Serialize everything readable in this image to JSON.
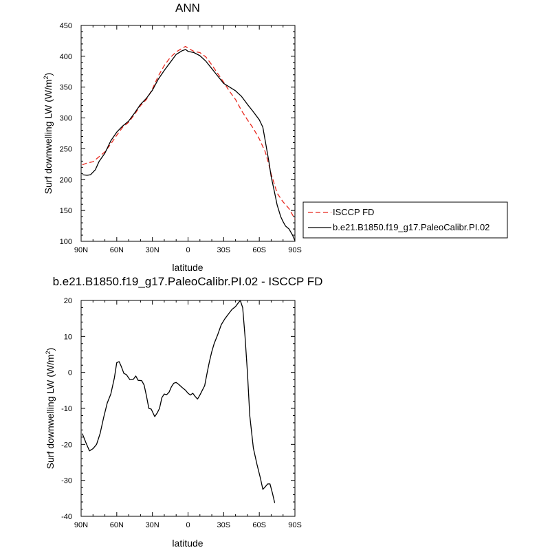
{
  "chart_data": [
    {
      "type": "line",
      "title": "ANN",
      "xlabel": "latitude",
      "ylabel_main": "Surf downwelling LW (W/m",
      "ylabel_sup": "2",
      "ylabel_close": ")",
      "xlim": [
        90,
        -90
      ],
      "ylim": [
        100,
        450
      ],
      "xticks": [
        90,
        60,
        30,
        0,
        -30,
        -60,
        -90
      ],
      "xtick_labels": [
        "90N",
        "60N",
        "30N",
        "0",
        "30S",
        "60S",
        "90S"
      ],
      "yticks": [
        100,
        150,
        200,
        250,
        300,
        350,
        400,
        450
      ],
      "ytick_labels": [
        "100",
        "150",
        "200",
        "250",
        "300",
        "350",
        "400",
        "450"
      ],
      "legend_position": "outside-right",
      "series": [
        {
          "name": "ISCCP FD",
          "color": "#e8261c",
          "dash": "dashed",
          "points": [
            [
              89,
              224
            ],
            [
              85,
              227
            ],
            [
              80,
              229
            ],
            [
              75,
              237
            ],
            [
              70,
              245
            ],
            [
              65,
              258
            ],
            [
              60,
              272
            ],
            [
              55,
              285
            ],
            [
              50,
              293
            ],
            [
              45,
              306
            ],
            [
              40,
              320
            ],
            [
              35,
              330
            ],
            [
              30,
              347
            ],
            [
              25,
              368
            ],
            [
              20,
              385
            ],
            [
              15,
              398
            ],
            [
              10,
              407
            ],
            [
              5,
              413
            ],
            [
              2,
              416
            ],
            [
              0,
              413
            ],
            [
              -5,
              408
            ],
            [
              -10,
              406
            ],
            [
              -15,
              399
            ],
            [
              -20,
              386
            ],
            [
              -25,
              372
            ],
            [
              -30,
              358
            ],
            [
              -35,
              343
            ],
            [
              -40,
              330
            ],
            [
              -45,
              312
            ],
            [
              -50,
              297
            ],
            [
              -55,
              283
            ],
            [
              -60,
              266
            ],
            [
              -65,
              245
            ],
            [
              -68,
              225
            ],
            [
              -70,
              209
            ],
            [
              -72,
              197
            ],
            [
              -75,
              178
            ],
            [
              -80,
              164
            ],
            [
              -85,
              153
            ],
            [
              -90,
              136
            ]
          ]
        },
        {
          "name": "b.e21.B1850.f19_g17.PaleoCalibr.PI.02",
          "color": "#000000",
          "dash": "solid",
          "points": [
            [
              89,
              208
            ],
            [
              85,
              207
            ],
            [
              82,
              208
            ],
            [
              78,
              216
            ],
            [
              75,
              229
            ],
            [
              70,
              243
            ],
            [
              65,
              263
            ],
            [
              60,
              277
            ],
            [
              55,
              287
            ],
            [
              50,
              295
            ],
            [
              45,
              308
            ],
            [
              40,
              322
            ],
            [
              35,
              332
            ],
            [
              30,
              345
            ],
            [
              25,
              363
            ],
            [
              20,
              377
            ],
            [
              15,
              390
            ],
            [
              10,
              403
            ],
            [
              5,
              409
            ],
            [
              2,
              411
            ],
            [
              0,
              408
            ],
            [
              -5,
              406
            ],
            [
              -10,
              401
            ],
            [
              -15,
              392
            ],
            [
              -20,
              380
            ],
            [
              -25,
              368
            ],
            [
              -30,
              356
            ],
            [
              -35,
              350
            ],
            [
              -40,
              344
            ],
            [
              -45,
              335
            ],
            [
              -50,
              322
            ],
            [
              -55,
              310
            ],
            [
              -60,
              297
            ],
            [
              -63,
              285
            ],
            [
              -65,
              263
            ],
            [
              -68,
              230
            ],
            [
              -70,
              205
            ],
            [
              -73,
              178
            ],
            [
              -75,
              159
            ],
            [
              -78,
              140
            ],
            [
              -80,
              132
            ],
            [
              -82,
              125
            ],
            [
              -85,
              120
            ],
            [
              -88,
              110
            ],
            [
              -90,
              101
            ]
          ]
        }
      ]
    },
    {
      "type": "line",
      "title": "b.e21.B1850.f19_g17.PaleoCalibr.PI.02 - ISCCP FD",
      "xlabel": "latitude",
      "ylabel_main": "Surf downwelling LW (W/m",
      "ylabel_sup": "2",
      "ylabel_close": ")",
      "xlim": [
        90,
        -90
      ],
      "ylim": [
        -40,
        20
      ],
      "xticks": [
        90,
        60,
        30,
        0,
        -30,
        -60,
        -90
      ],
      "xtick_labels": [
        "90N",
        "60N",
        "30N",
        "0",
        "30S",
        "60S",
        "90S"
      ],
      "yticks": [
        -40,
        -30,
        -20,
        -10,
        0,
        10,
        20
      ],
      "ytick_labels": [
        "-40",
        "-30",
        "-20",
        "-10",
        "0",
        "10",
        "20"
      ],
      "series": [
        {
          "color": "#000000",
          "dash": "solid",
          "points": [
            [
              89,
              -17
            ],
            [
              86,
              -19.5
            ],
            [
              83,
              -21.8
            ],
            [
              80,
              -21.2
            ],
            [
              77,
              -20
            ],
            [
              74,
              -17
            ],
            [
              71,
              -12.5
            ],
            [
              68,
              -8.5
            ],
            [
              65,
              -6
            ],
            [
              62,
              -1.5
            ],
            [
              60,
              2.7
            ],
            [
              58,
              3
            ],
            [
              56,
              1.5
            ],
            [
              54,
              -0.3
            ],
            [
              52,
              -0.6
            ],
            [
              49,
              -2
            ],
            [
              46,
              -1.9
            ],
            [
              44,
              -1
            ],
            [
              42,
              -2.2
            ],
            [
              39,
              -2.3
            ],
            [
              37,
              -3.5
            ],
            [
              35,
              -6.5
            ],
            [
              33,
              -10
            ],
            [
              31,
              -10.2
            ],
            [
              28,
              -12.3
            ],
            [
              26,
              -11.3
            ],
            [
              24,
              -10
            ],
            [
              22,
              -7
            ],
            [
              20,
              -6
            ],
            [
              18,
              -6.2
            ],
            [
              16,
              -5.5
            ],
            [
              14,
              -4
            ],
            [
              12,
              -3
            ],
            [
              10,
              -2.8
            ],
            [
              8,
              -3.3
            ],
            [
              5,
              -4.2
            ],
            [
              2,
              -5
            ],
            [
              0,
              -5.8
            ],
            [
              -2,
              -6.3
            ],
            [
              -4,
              -5.8
            ],
            [
              -6,
              -6.7
            ],
            [
              -8,
              -7.4
            ],
            [
              -10,
              -6.3
            ],
            [
              -12,
              -5
            ],
            [
              -14,
              -3.7
            ],
            [
              -16,
              -0.3
            ],
            [
              -18,
              3
            ],
            [
              -20,
              5.8
            ],
            [
              -22,
              8
            ],
            [
              -25,
              10.5
            ],
            [
              -28,
              13.3
            ],
            [
              -31,
              14.9
            ],
            [
              -34,
              16.2
            ],
            [
              -37,
              17.5
            ],
            [
              -40,
              18.3
            ],
            [
              -42,
              19.2
            ],
            [
              -44,
              20
            ],
            [
              -46,
              18
            ],
            [
              -48,
              10
            ],
            [
              -50,
              0
            ],
            [
              -52,
              -12
            ],
            [
              -55,
              -21
            ],
            [
              -58,
              -25.5
            ],
            [
              -61,
              -29.5
            ],
            [
              -63,
              -32.5
            ],
            [
              -65,
              -31.8
            ],
            [
              -67,
              -31
            ],
            [
              -69,
              -31
            ],
            [
              -71,
              -33.5
            ],
            [
              -73,
              -36.3
            ]
          ]
        }
      ]
    }
  ]
}
